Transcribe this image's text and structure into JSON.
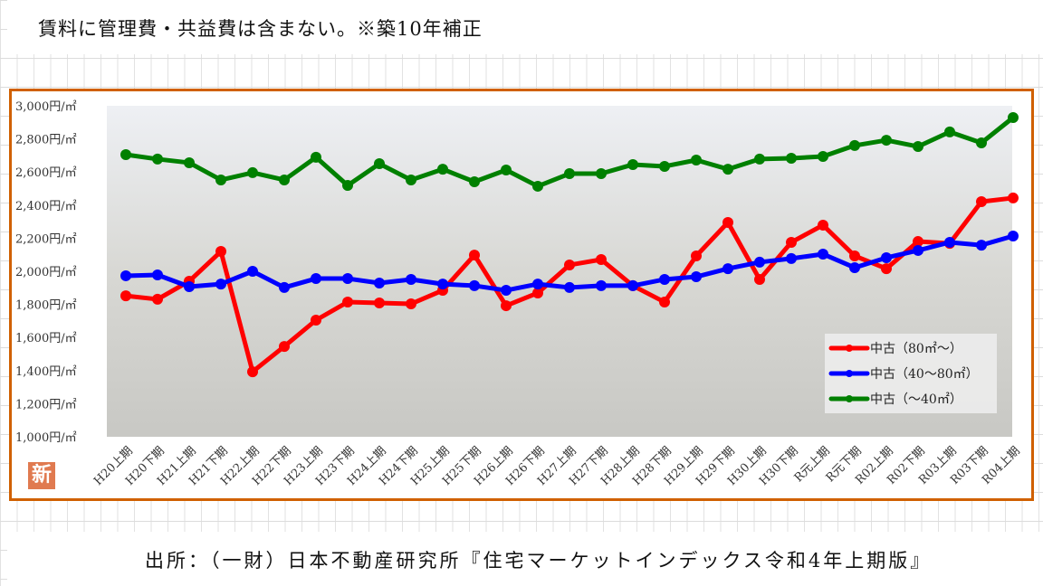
{
  "title": "賃料に管理費・共益費は含まない。※築10年補正",
  "footer": "出所：（一財）日本不動産研究所『住宅マーケットインデックス令和4年上期版』",
  "badge": "新",
  "chart_data": {
    "type": "line",
    "title": "",
    "xlabel": "",
    "ylabel": "",
    "ylim": [
      1000,
      3000
    ],
    "y_ticks": [
      1000,
      1200,
      1400,
      1600,
      1800,
      2000,
      2200,
      2400,
      2600,
      2800,
      3000
    ],
    "y_tick_labels": [
      "1,000円/㎡",
      "1,200円/㎡",
      "1,400円/㎡",
      "1,600円/㎡",
      "1,800円/㎡",
      "2,000円/㎡",
      "2,200円/㎡",
      "2,400円/㎡",
      "2,600円/㎡",
      "2,800円/㎡",
      "3,000円/㎡"
    ],
    "categories": [
      "H20上期",
      "H20下期",
      "H21上期",
      "H21下期",
      "H22上期",
      "H22下期",
      "H23上期",
      "H23下期",
      "H24上期",
      "H24下期",
      "H25上期",
      "H25下期",
      "H26上期",
      "H26下期",
      "H27上期",
      "H27下期",
      "H28上期",
      "H28下期",
      "H29上期",
      "H29下期",
      "H30上期",
      "H30下期",
      "R元上期",
      "R元下期",
      "R02上期",
      "R02下期",
      "R03上期",
      "R03下期",
      "R04上期"
    ],
    "legend_position": "bottom-right",
    "grid": false,
    "series": [
      {
        "name": "中古（80㎡～）",
        "color": "#ff0000",
        "values": [
          1852,
          1831,
          1940,
          2120,
          1393,
          1546,
          1705,
          1814,
          1809,
          1803,
          1885,
          2098,
          1792,
          1869,
          2038,
          2071,
          1913,
          1814,
          2093,
          2295,
          1951,
          2175,
          2279,
          2093,
          2016,
          2180,
          2169,
          2421,
          2443
        ]
      },
      {
        "name": "中古（40～80㎡）",
        "color": "#0000ff",
        "values": [
          1973,
          1978,
          1907,
          1923,
          2000,
          1902,
          1956,
          1956,
          1929,
          1951,
          1923,
          1913,
          1885,
          1923,
          1902,
          1913,
          1913,
          1951,
          1967,
          2016,
          2055,
          2077,
          2104,
          2022,
          2082,
          2126,
          2175,
          2158,
          2213
        ]
      },
      {
        "name": "中古（～40㎡）",
        "color": "#008000",
        "values": [
          2705,
          2678,
          2656,
          2552,
          2596,
          2552,
          2689,
          2519,
          2650,
          2552,
          2617,
          2541,
          2612,
          2514,
          2590,
          2590,
          2645,
          2634,
          2672,
          2617,
          2678,
          2683,
          2694,
          2760,
          2792,
          2754,
          2842,
          2776,
          2929
        ]
      }
    ]
  }
}
